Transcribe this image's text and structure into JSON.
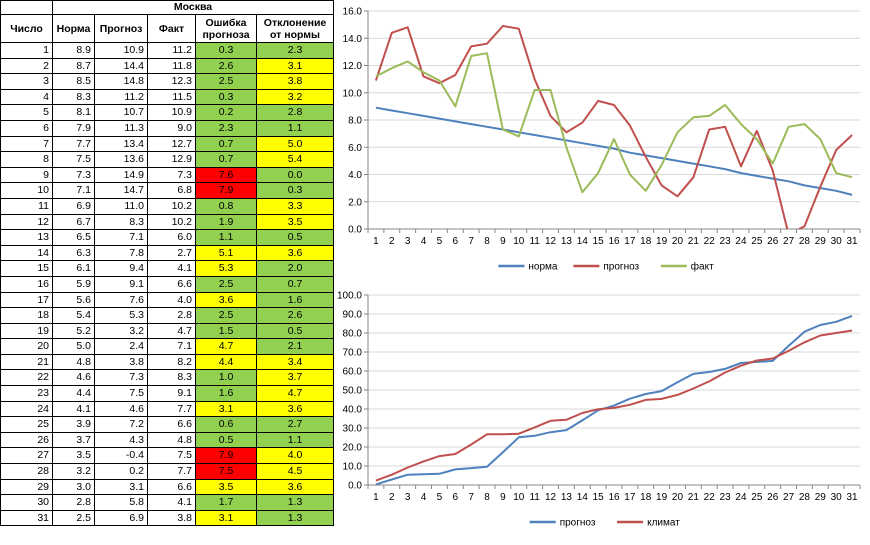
{
  "table": {
    "city": "Москва",
    "headers": [
      "Число",
      "Норма",
      "Прогноз",
      "Факт",
      "Ошибка прогноза",
      "Отклонение от нормы"
    ],
    "rows": [
      {
        "day": "1",
        "norm": "8.9",
        "forecast": "10.9",
        "fact": "11.2",
        "err": "0.3",
        "dev": "2.3",
        "err_color": "green",
        "dev_color": "green"
      },
      {
        "day": "2",
        "norm": "8.7",
        "forecast": "14.4",
        "fact": "11.8",
        "err": "2.6",
        "dev": "3.1",
        "err_color": "green",
        "dev_color": "yellow"
      },
      {
        "day": "3",
        "norm": "8.5",
        "forecast": "14.8",
        "fact": "12.3",
        "err": "2.5",
        "dev": "3.8",
        "err_color": "green",
        "dev_color": "yellow"
      },
      {
        "day": "4",
        "norm": "8.3",
        "forecast": "11.2",
        "fact": "11.5",
        "err": "0.3",
        "dev": "3.2",
        "err_color": "green",
        "dev_color": "yellow"
      },
      {
        "day": "5",
        "norm": "8.1",
        "forecast": "10.7",
        "fact": "10.9",
        "err": "0.2",
        "dev": "2.8",
        "err_color": "green",
        "dev_color": "green"
      },
      {
        "day": "6",
        "norm": "7.9",
        "forecast": "11.3",
        "fact": "9.0",
        "err": "2.3",
        "dev": "1.1",
        "err_color": "green",
        "dev_color": "green"
      },
      {
        "day": "7",
        "norm": "7.7",
        "forecast": "13.4",
        "fact": "12.7",
        "err": "0.7",
        "dev": "5.0",
        "err_color": "green",
        "dev_color": "yellow"
      },
      {
        "day": "8",
        "norm": "7.5",
        "forecast": "13.6",
        "fact": "12.9",
        "err": "0.7",
        "dev": "5.4",
        "err_color": "green",
        "dev_color": "yellow"
      },
      {
        "day": "9",
        "norm": "7.3",
        "forecast": "14.9",
        "fact": "7.3",
        "err": "7.6",
        "dev": "0.0",
        "err_color": "red",
        "dev_color": "green"
      },
      {
        "day": "10",
        "norm": "7.1",
        "forecast": "14.7",
        "fact": "6.8",
        "err": "7.9",
        "dev": "0.3",
        "err_color": "red",
        "dev_color": "green"
      },
      {
        "day": "11",
        "norm": "6.9",
        "forecast": "11.0",
        "fact": "10.2",
        "err": "0.8",
        "dev": "3.3",
        "err_color": "green",
        "dev_color": "yellow"
      },
      {
        "day": "12",
        "norm": "6.7",
        "forecast": "8.3",
        "fact": "10.2",
        "err": "1.9",
        "dev": "3.5",
        "err_color": "green",
        "dev_color": "yellow"
      },
      {
        "day": "13",
        "norm": "6.5",
        "forecast": "7.1",
        "fact": "6.0",
        "err": "1.1",
        "dev": "0.5",
        "err_color": "green",
        "dev_color": "green"
      },
      {
        "day": "14",
        "norm": "6.3",
        "forecast": "7.8",
        "fact": "2.7",
        "err": "5.1",
        "dev": "3.6",
        "err_color": "yellow",
        "dev_color": "yellow"
      },
      {
        "day": "15",
        "norm": "6.1",
        "forecast": "9.4",
        "fact": "4.1",
        "err": "5.3",
        "dev": "2.0",
        "err_color": "yellow",
        "dev_color": "green"
      },
      {
        "day": "16",
        "norm": "5.9",
        "forecast": "9.1",
        "fact": "6.6",
        "err": "2.5",
        "dev": "0.7",
        "err_color": "green",
        "dev_color": "green"
      },
      {
        "day": "17",
        "norm": "5.6",
        "forecast": "7.6",
        "fact": "4.0",
        "err": "3.6",
        "dev": "1.6",
        "err_color": "yellow",
        "dev_color": "green"
      },
      {
        "day": "18",
        "norm": "5.4",
        "forecast": "5.3",
        "fact": "2.8",
        "err": "2.5",
        "dev": "2.6",
        "err_color": "green",
        "dev_color": "green"
      },
      {
        "day": "19",
        "norm": "5.2",
        "forecast": "3.2",
        "fact": "4.7",
        "err": "1.5",
        "dev": "0.5",
        "err_color": "green",
        "dev_color": "green"
      },
      {
        "day": "20",
        "norm": "5.0",
        "forecast": "2.4",
        "fact": "7.1",
        "err": "4.7",
        "dev": "2.1",
        "err_color": "yellow",
        "dev_color": "green"
      },
      {
        "day": "21",
        "norm": "4.8",
        "forecast": "3.8",
        "fact": "8.2",
        "err": "4.4",
        "dev": "3.4",
        "err_color": "yellow",
        "dev_color": "yellow"
      },
      {
        "day": "22",
        "norm": "4.6",
        "forecast": "7.3",
        "fact": "8.3",
        "err": "1.0",
        "dev": "3.7",
        "err_color": "green",
        "dev_color": "yellow"
      },
      {
        "day": "23",
        "norm": "4.4",
        "forecast": "7.5",
        "fact": "9.1",
        "err": "1.6",
        "dev": "4.7",
        "err_color": "green",
        "dev_color": "yellow"
      },
      {
        "day": "24",
        "norm": "4.1",
        "forecast": "4.6",
        "fact": "7.7",
        "err": "3.1",
        "dev": "3.6",
        "err_color": "yellow",
        "dev_color": "yellow"
      },
      {
        "day": "25",
        "norm": "3.9",
        "forecast": "7.2",
        "fact": "6.6",
        "err": "0.6",
        "dev": "2.7",
        "err_color": "green",
        "dev_color": "green"
      },
      {
        "day": "26",
        "norm": "3.7",
        "forecast": "4.3",
        "fact": "4.8",
        "err": "0.5",
        "dev": "1.1",
        "err_color": "green",
        "dev_color": "green"
      },
      {
        "day": "27",
        "norm": "3.5",
        "forecast": "-0.4",
        "fact": "7.5",
        "err": "7.9",
        "dev": "4.0",
        "err_color": "red",
        "dev_color": "yellow"
      },
      {
        "day": "28",
        "norm": "3.2",
        "forecast": "0.2",
        "fact": "7.7",
        "err": "7.5",
        "dev": "4.5",
        "err_color": "red",
        "dev_color": "yellow"
      },
      {
        "day": "29",
        "norm": "3.0",
        "forecast": "3.1",
        "fact": "6.6",
        "err": "3.5",
        "dev": "3.6",
        "err_color": "yellow",
        "dev_color": "yellow"
      },
      {
        "day": "30",
        "norm": "2.8",
        "forecast": "5.8",
        "fact": "4.1",
        "err": "1.7",
        "dev": "1.3",
        "err_color": "green",
        "dev_color": "green"
      },
      {
        "day": "31",
        "norm": "2.5",
        "forecast": "6.9",
        "fact": "3.8",
        "err": "3.1",
        "dev": "1.3",
        "err_color": "yellow",
        "dev_color": "green"
      }
    ]
  },
  "colors": {
    "green": "#92d050",
    "yellow": "#ffff00",
    "red": "#ff0000",
    "blue": "#4f81bd",
    "maroon": "#c0504d",
    "olive": "#9bbb59",
    "grid": "#d9d9d9",
    "axis": "#868686"
  },
  "chart_data": [
    {
      "type": "line",
      "x": [
        1,
        2,
        3,
        4,
        5,
        6,
        7,
        8,
        9,
        10,
        11,
        12,
        13,
        14,
        15,
        16,
        17,
        18,
        19,
        20,
        21,
        22,
        23,
        24,
        25,
        26,
        27,
        28,
        29,
        30,
        31
      ],
      "ylim": [
        0,
        16
      ],
      "yticks": [
        "0.0",
        "2.0",
        "4.0",
        "6.0",
        "8.0",
        "10.0",
        "12.0",
        "14.0",
        "16.0"
      ],
      "ytick_values": [
        0,
        2,
        4,
        6,
        8,
        10,
        12,
        14,
        16
      ],
      "grid": true,
      "legend": "bottom",
      "series": [
        {
          "name": "норма",
          "color": "#4f81bd",
          "values": [
            8.9,
            8.7,
            8.5,
            8.3,
            8.1,
            7.9,
            7.7,
            7.5,
            7.3,
            7.1,
            6.9,
            6.7,
            6.5,
            6.3,
            6.1,
            5.9,
            5.6,
            5.4,
            5.2,
            5.0,
            4.8,
            4.6,
            4.4,
            4.1,
            3.9,
            3.7,
            3.5,
            3.2,
            3.0,
            2.8,
            2.5
          ]
        },
        {
          "name": "прогноз",
          "color": "#c0504d",
          "values": [
            10.9,
            14.4,
            14.8,
            11.2,
            10.7,
            11.3,
            13.4,
            13.6,
            14.9,
            14.7,
            11.0,
            8.3,
            7.1,
            7.8,
            9.4,
            9.1,
            7.6,
            5.3,
            3.2,
            2.4,
            3.8,
            7.3,
            7.5,
            4.6,
            7.2,
            4.3,
            -0.4,
            0.2,
            3.1,
            5.8,
            6.9
          ]
        },
        {
          "name": "факт",
          "color": "#9bbb59",
          "values": [
            11.2,
            11.8,
            12.3,
            11.5,
            10.9,
            9.0,
            12.7,
            12.9,
            7.3,
            6.8,
            10.2,
            10.2,
            6.0,
            2.7,
            4.1,
            6.6,
            4.0,
            2.8,
            4.7,
            7.1,
            8.2,
            8.3,
            9.1,
            7.7,
            6.6,
            4.8,
            7.5,
            7.7,
            6.6,
            4.1,
            3.8
          ]
        }
      ]
    },
    {
      "type": "line",
      "x": [
        1,
        2,
        3,
        4,
        5,
        6,
        7,
        8,
        9,
        10,
        11,
        12,
        13,
        14,
        15,
        16,
        17,
        18,
        19,
        20,
        21,
        22,
        23,
        24,
        25,
        26,
        27,
        28,
        29,
        30,
        31
      ],
      "ylim": [
        0,
        100
      ],
      "yticks": [
        "0.0",
        "10.0",
        "20.0",
        "30.0",
        "40.0",
        "50.0",
        "60.0",
        "70.0",
        "80.0",
        "90.0",
        "100.0"
      ],
      "ytick_values": [
        0,
        10,
        20,
        30,
        40,
        50,
        60,
        70,
        80,
        90,
        100
      ],
      "grid": true,
      "legend": "bottom",
      "series": [
        {
          "name": "прогноз",
          "color": "#4f81bd",
          "values": [
            0.3,
            2.9,
            5.4,
            5.7,
            5.9,
            8.2,
            8.9,
            9.6,
            17.2,
            25.1,
            25.9,
            27.8,
            28.9,
            34.0,
            39.3,
            41.8,
            45.4,
            47.9,
            49.4,
            54.1,
            58.5,
            59.5,
            61.1,
            64.2,
            64.8,
            65.3,
            73.2,
            80.7,
            84.2,
            85.9,
            89.0
          ]
        },
        {
          "name": "климат",
          "color": "#c0504d",
          "values": [
            2.3,
            5.4,
            9.2,
            12.4,
            15.2,
            16.3,
            21.3,
            26.7,
            26.7,
            27.0,
            30.3,
            33.8,
            34.3,
            37.9,
            39.9,
            40.6,
            42.2,
            44.8,
            45.3,
            47.4,
            50.8,
            54.5,
            59.2,
            62.8,
            65.5,
            66.6,
            70.6,
            75.1,
            78.7,
            80.0,
            81.3
          ]
        }
      ]
    }
  ]
}
